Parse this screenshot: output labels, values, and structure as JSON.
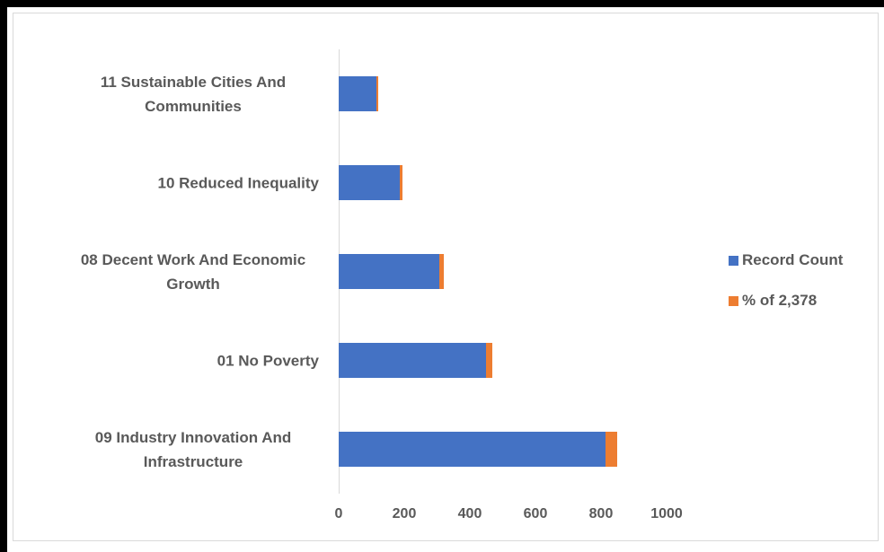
{
  "chart_data": {
    "type": "stacked_bar_horizontal",
    "categories": [
      "11 Sustainable Cities And Communities",
      "10 Reduced Inequality",
      "08 Decent Work And Economic Growth",
      "01 No Poverty",
      "09 Industry Innovation And Infrastructure"
    ],
    "series": [
      {
        "name": "Record Count",
        "color": "#4472c4",
        "values": [
          115,
          186,
          307,
          449,
          815
        ]
      },
      {
        "name": "% of 2,378",
        "color": "#ed7d31",
        "values": [
          5,
          8,
          13,
          19,
          34
        ]
      }
    ],
    "xlim": [
      0,
      1000
    ],
    "xticks": [
      0,
      200,
      400,
      600,
      800,
      1000
    ],
    "legend": "right"
  }
}
